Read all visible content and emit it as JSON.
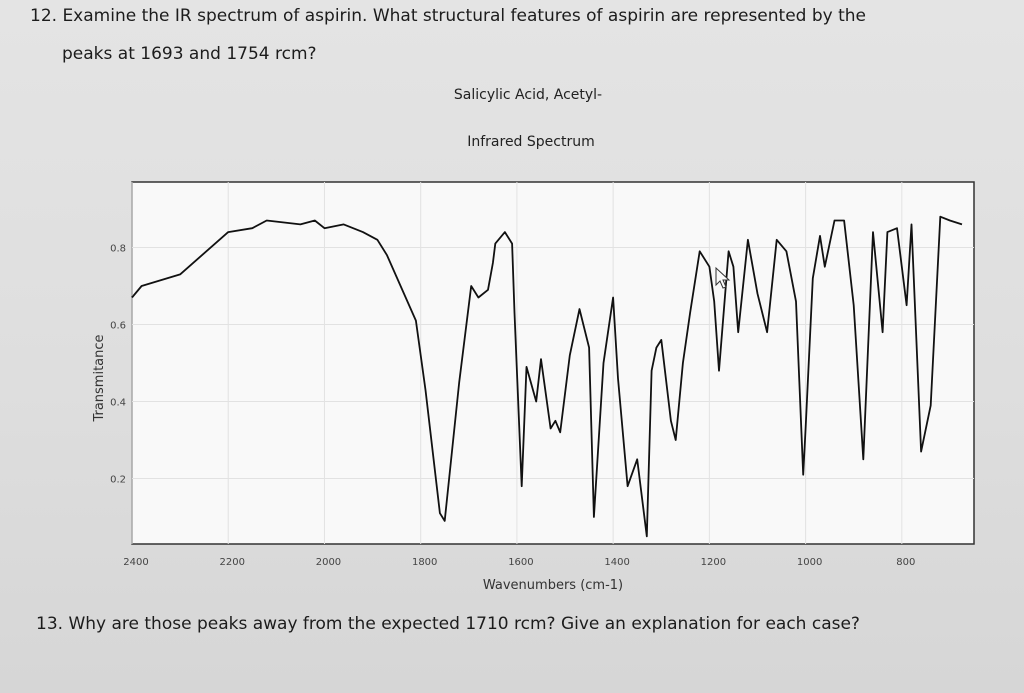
{
  "question_12": {
    "line1": "12. Examine the IR spectrum of aspirin. What structural features of aspirin are represented by the",
    "line2": "peaks at 1693 and 1754 rcm?"
  },
  "question_13": "13. Why are those peaks away from the expected 1710 rcm? Give an explanation for each case?",
  "chart_data": {
    "type": "line",
    "title_line1": "Salicylic Acid, Acetyl-",
    "title_line2": "Infrared Spectrum",
    "xlabel": "Wavenumbers (cm-1)",
    "ylabel": "Transmitance",
    "xlim": [
      2400,
      650
    ],
    "ylim": [
      0.03,
      0.97
    ],
    "x_ticks": [
      "2400",
      "2200",
      "2000",
      "1800",
      "1600",
      "1400",
      "1200",
      "1000",
      "800"
    ],
    "y_ticks": [
      "0.8",
      "0.6",
      "0.4",
      "0.2"
    ],
    "grid": true,
    "line_color": "#111111",
    "series": [
      {
        "x": [
          2400,
          2380,
          2300,
          2200,
          2150,
          2120,
          2050,
          2020,
          2000,
          1960,
          1920,
          1890,
          1870,
          1810,
          1790,
          1760,
          1750,
          1720,
          1695,
          1680,
          1660,
          1650,
          1645,
          1625,
          1610,
          1605,
          1590,
          1580,
          1560,
          1550,
          1530,
          1520,
          1510,
          1490,
          1470,
          1450,
          1440,
          1420,
          1400,
          1390,
          1370,
          1350,
          1330,
          1320,
          1310,
          1300,
          1280,
          1270,
          1255,
          1240,
          1220,
          1200,
          1190,
          1180,
          1160,
          1150,
          1140,
          1120,
          1100,
          1080,
          1060,
          1040,
          1020,
          1005,
          1000,
          985,
          970,
          960,
          940,
          920,
          900,
          880,
          860,
          840,
          830,
          810,
          790,
          780,
          760,
          740,
          720,
          700,
          675
        ],
        "y": [
          0.67,
          0.7,
          0.73,
          0.84,
          0.85,
          0.87,
          0.86,
          0.87,
          0.85,
          0.86,
          0.84,
          0.82,
          0.78,
          0.61,
          0.43,
          0.11,
          0.09,
          0.45,
          0.7,
          0.67,
          0.69,
          0.76,
          0.81,
          0.84,
          0.81,
          0.63,
          0.18,
          0.49,
          0.4,
          0.51,
          0.33,
          0.35,
          0.32,
          0.52,
          0.64,
          0.54,
          0.1,
          0.5,
          0.67,
          0.46,
          0.18,
          0.25,
          0.05,
          0.48,
          0.54,
          0.56,
          0.35,
          0.3,
          0.5,
          0.63,
          0.79,
          0.75,
          0.66,
          0.48,
          0.79,
          0.75,
          0.58,
          0.82,
          0.68,
          0.58,
          0.82,
          0.79,
          0.66,
          0.21,
          0.33,
          0.72,
          0.83,
          0.75,
          0.87,
          0.87,
          0.65,
          0.25,
          0.84,
          0.58,
          0.84,
          0.85,
          0.65,
          0.86,
          0.27,
          0.39,
          0.88,
          0.87,
          0.86
        ]
      }
    ]
  }
}
